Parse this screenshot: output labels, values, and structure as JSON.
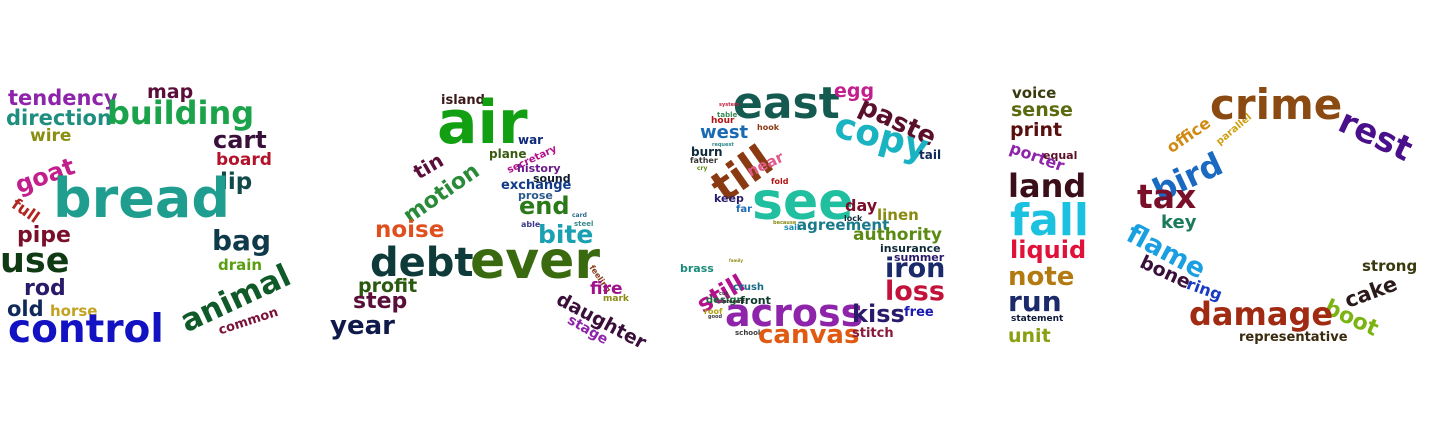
{
  "letters": [
    {
      "shape": "B",
      "words": [
        {
          "text": "tendency",
          "color": "#8e24aa"
        },
        {
          "text": "map",
          "color": "#5a0f3a"
        },
        {
          "text": "direction",
          "color": "#1e8e7e"
        },
        {
          "text": "building",
          "color": "#1aa34a"
        },
        {
          "text": "wire",
          "color": "#8a8f12"
        },
        {
          "text": "cart",
          "color": "#3a0f3a"
        },
        {
          "text": "board",
          "color": "#b3122a"
        },
        {
          "text": "goat",
          "color": "#c21e8c"
        },
        {
          "text": "lip",
          "color": "#114848"
        },
        {
          "text": "bread",
          "color": "#1f9e8f"
        },
        {
          "text": "full",
          "color": "#b3241e"
        },
        {
          "text": "pipe",
          "color": "#7a0f2a"
        },
        {
          "text": "bag",
          "color": "#0f3a4a"
        },
        {
          "text": "use",
          "color": "#0f3a14"
        },
        {
          "text": "drain",
          "color": "#5a9e12"
        },
        {
          "text": "rod",
          "color": "#2a1a6a"
        },
        {
          "text": "animal",
          "color": "#0f5a28"
        },
        {
          "text": "old",
          "color": "#0f2a5a"
        },
        {
          "text": "horse",
          "color": "#c2a21e"
        },
        {
          "text": "control",
          "color": "#1212c2"
        },
        {
          "text": "common",
          "color": "#7a123a"
        }
      ]
    },
    {
      "shape": "A",
      "words": [
        {
          "text": "island",
          "color": "#3a1a1a"
        },
        {
          "text": "air",
          "color": "#12a012"
        },
        {
          "text": "war",
          "color": "#0f2a7a"
        },
        {
          "text": "tin",
          "color": "#5a0f3a"
        },
        {
          "text": "plane",
          "color": "#3a5a0f"
        },
        {
          "text": "secretary",
          "color": "#b3128c"
        },
        {
          "text": "history",
          "color": "#6a1a8a"
        },
        {
          "text": "motion",
          "color": "#2a8a3a"
        },
        {
          "text": "sound",
          "color": "#0f1a2a"
        },
        {
          "text": "exchange",
          "color": "#0f3a8a"
        },
        {
          "text": "prose",
          "color": "#2a5a8a"
        },
        {
          "text": "end",
          "color": "#2a7a1a"
        },
        {
          "text": "noise",
          "color": "#e0501e"
        },
        {
          "text": "card",
          "color": "#2a6a8a"
        },
        {
          "text": "steel",
          "color": "#3a8a8a"
        },
        {
          "text": "able",
          "color": "#3a3a8a"
        },
        {
          "text": "bite",
          "color": "#1aa0b3"
        },
        {
          "text": "debt",
          "color": "#0f3a3a"
        },
        {
          "text": "ever",
          "color": "#3a6a0f"
        },
        {
          "text": "feeling",
          "color": "#8a3a1a"
        },
        {
          "text": "profit",
          "color": "#2a5a0f"
        },
        {
          "text": "fire",
          "color": "#a0128c"
        },
        {
          "text": "mark",
          "color": "#8a8a12"
        },
        {
          "text": "step",
          "color": "#5a0f3a"
        },
        {
          "text": "daughter",
          "color": "#3a0f3a"
        },
        {
          "text": "year",
          "color": "#0f1a4a"
        },
        {
          "text": "stage",
          "color": "#8e24aa"
        }
      ]
    },
    {
      "shape": "S",
      "words": [
        {
          "text": "east",
          "color": "#145a50"
        },
        {
          "text": "egg",
          "color": "#c21e8c"
        },
        {
          "text": "paste",
          "color": "#5a0f2a"
        },
        {
          "text": "system",
          "color": "#c21e3a"
        },
        {
          "text": "table",
          "color": "#3a8a5a"
        },
        {
          "text": "hour",
          "color": "#b31212"
        },
        {
          "text": "hook",
          "color": "#8a3a12"
        },
        {
          "text": "west",
          "color": "#1a6ab3"
        },
        {
          "text": "copy",
          "color": "#1ab3c2"
        },
        {
          "text": "tail",
          "color": "#0f2a5a"
        },
        {
          "text": "burn",
          "color": "#0f2a3a"
        },
        {
          "text": "request",
          "color": "#2a8a8a"
        },
        {
          "text": "father",
          "color": "#3a3a3a"
        },
        {
          "text": "till",
          "color": "#8a3a12"
        },
        {
          "text": "cry",
          "color": "#5a8a12"
        },
        {
          "text": "near",
          "color": "#e05a8a"
        },
        {
          "text": "fold",
          "color": "#b31212"
        },
        {
          "text": "keep",
          "color": "#2a1a6a"
        },
        {
          "text": "far",
          "color": "#1a6ab3"
        },
        {
          "text": "see",
          "color": "#1fbf9f"
        },
        {
          "text": "day",
          "color": "#7a0f2a"
        },
        {
          "text": "lock",
          "color": "#0f2a3a"
        },
        {
          "text": "because",
          "color": "#8a8a12"
        },
        {
          "text": "sail",
          "color": "#1a8ab3"
        },
        {
          "text": "agreement",
          "color": "#1a7a8a"
        },
        {
          "text": "linen",
          "color": "#8a8a12"
        },
        {
          "text": "authority",
          "color": "#5a8a12"
        },
        {
          "text": "insurance",
          "color": "#0f2a3a"
        },
        {
          "text": "summer",
          "color": "#2a1a6a"
        },
        {
          "text": "iron",
          "color": "#1a2a6a"
        },
        {
          "text": "brass",
          "color": "#1a8a7a"
        },
        {
          "text": "family",
          "color": "#8a8a12"
        },
        {
          "text": "still",
          "color": "#b3128c"
        },
        {
          "text": "crush",
          "color": "#1a6a8a"
        },
        {
          "text": "cut",
          "color": "#3a3a3a"
        },
        {
          "text": "design",
          "color": "#1a6a3a"
        },
        {
          "text": "front",
          "color": "#0f3a2a"
        },
        {
          "text": "loss",
          "color": "#c2123a"
        },
        {
          "text": "present",
          "color": "#2a2a2a"
        },
        {
          "text": "roof",
          "color": "#b3a212"
        },
        {
          "text": "good",
          "color": "#3a3a3a"
        },
        {
          "text": "across",
          "color": "#8e24aa"
        },
        {
          "text": "kiss",
          "color": "#2a1a6a"
        },
        {
          "text": "free",
          "color": "#1a1ab3"
        },
        {
          "text": "school",
          "color": "#3a3a3a"
        },
        {
          "text": "canvas",
          "color": "#e05a12"
        },
        {
          "text": "stitch",
          "color": "#8a1a3a"
        }
      ]
    },
    {
      "shape": "I",
      "words": [
        {
          "text": "voice",
          "color": "#3a3a0f"
        },
        {
          "text": "sense",
          "color": "#5a6a0f"
        },
        {
          "text": "print",
          "color": "#5a0f0f"
        },
        {
          "text": "porter",
          "color": "#8e24aa"
        },
        {
          "text": "equal",
          "color": "#5a0f2a"
        },
        {
          "text": "land",
          "color": "#3a0f1a"
        },
        {
          "text": "fall",
          "color": "#1ac2e0"
        },
        {
          "text": "liquid",
          "color": "#e0123a"
        },
        {
          "text": "note",
          "color": "#b37a12"
        },
        {
          "text": "run",
          "color": "#1a2a6a"
        },
        {
          "text": "statement",
          "color": "#0f1a3a"
        },
        {
          "text": "unit",
          "color": "#8aa012"
        }
      ]
    },
    {
      "shape": "C",
      "words": [
        {
          "text": "office",
          "color": "#d08a12"
        },
        {
          "text": "parallel",
          "color": "#d0a012"
        },
        {
          "text": "crime",
          "color": "#8a4a12"
        },
        {
          "text": "rest",
          "color": "#4a0f8a"
        },
        {
          "text": "bird",
          "color": "#1a6ac2"
        },
        {
          "text": "tax",
          "color": "#7a0f2a"
        },
        {
          "text": "key",
          "color": "#1a7a5a"
        },
        {
          "text": "flame",
          "color": "#1aa0e0"
        },
        {
          "text": "bone",
          "color": "#3a0f3a"
        },
        {
          "text": "ring",
          "color": "#1a3ac2"
        },
        {
          "text": "strong",
          "color": "#3a3a0f"
        },
        {
          "text": "cake",
          "color": "#2a1a1a"
        },
        {
          "text": "boot",
          "color": "#7ab312"
        },
        {
          "text": "damage",
          "color": "#a02a12"
        },
        {
          "text": "representative",
          "color": "#3a2a0f"
        }
      ]
    }
  ]
}
